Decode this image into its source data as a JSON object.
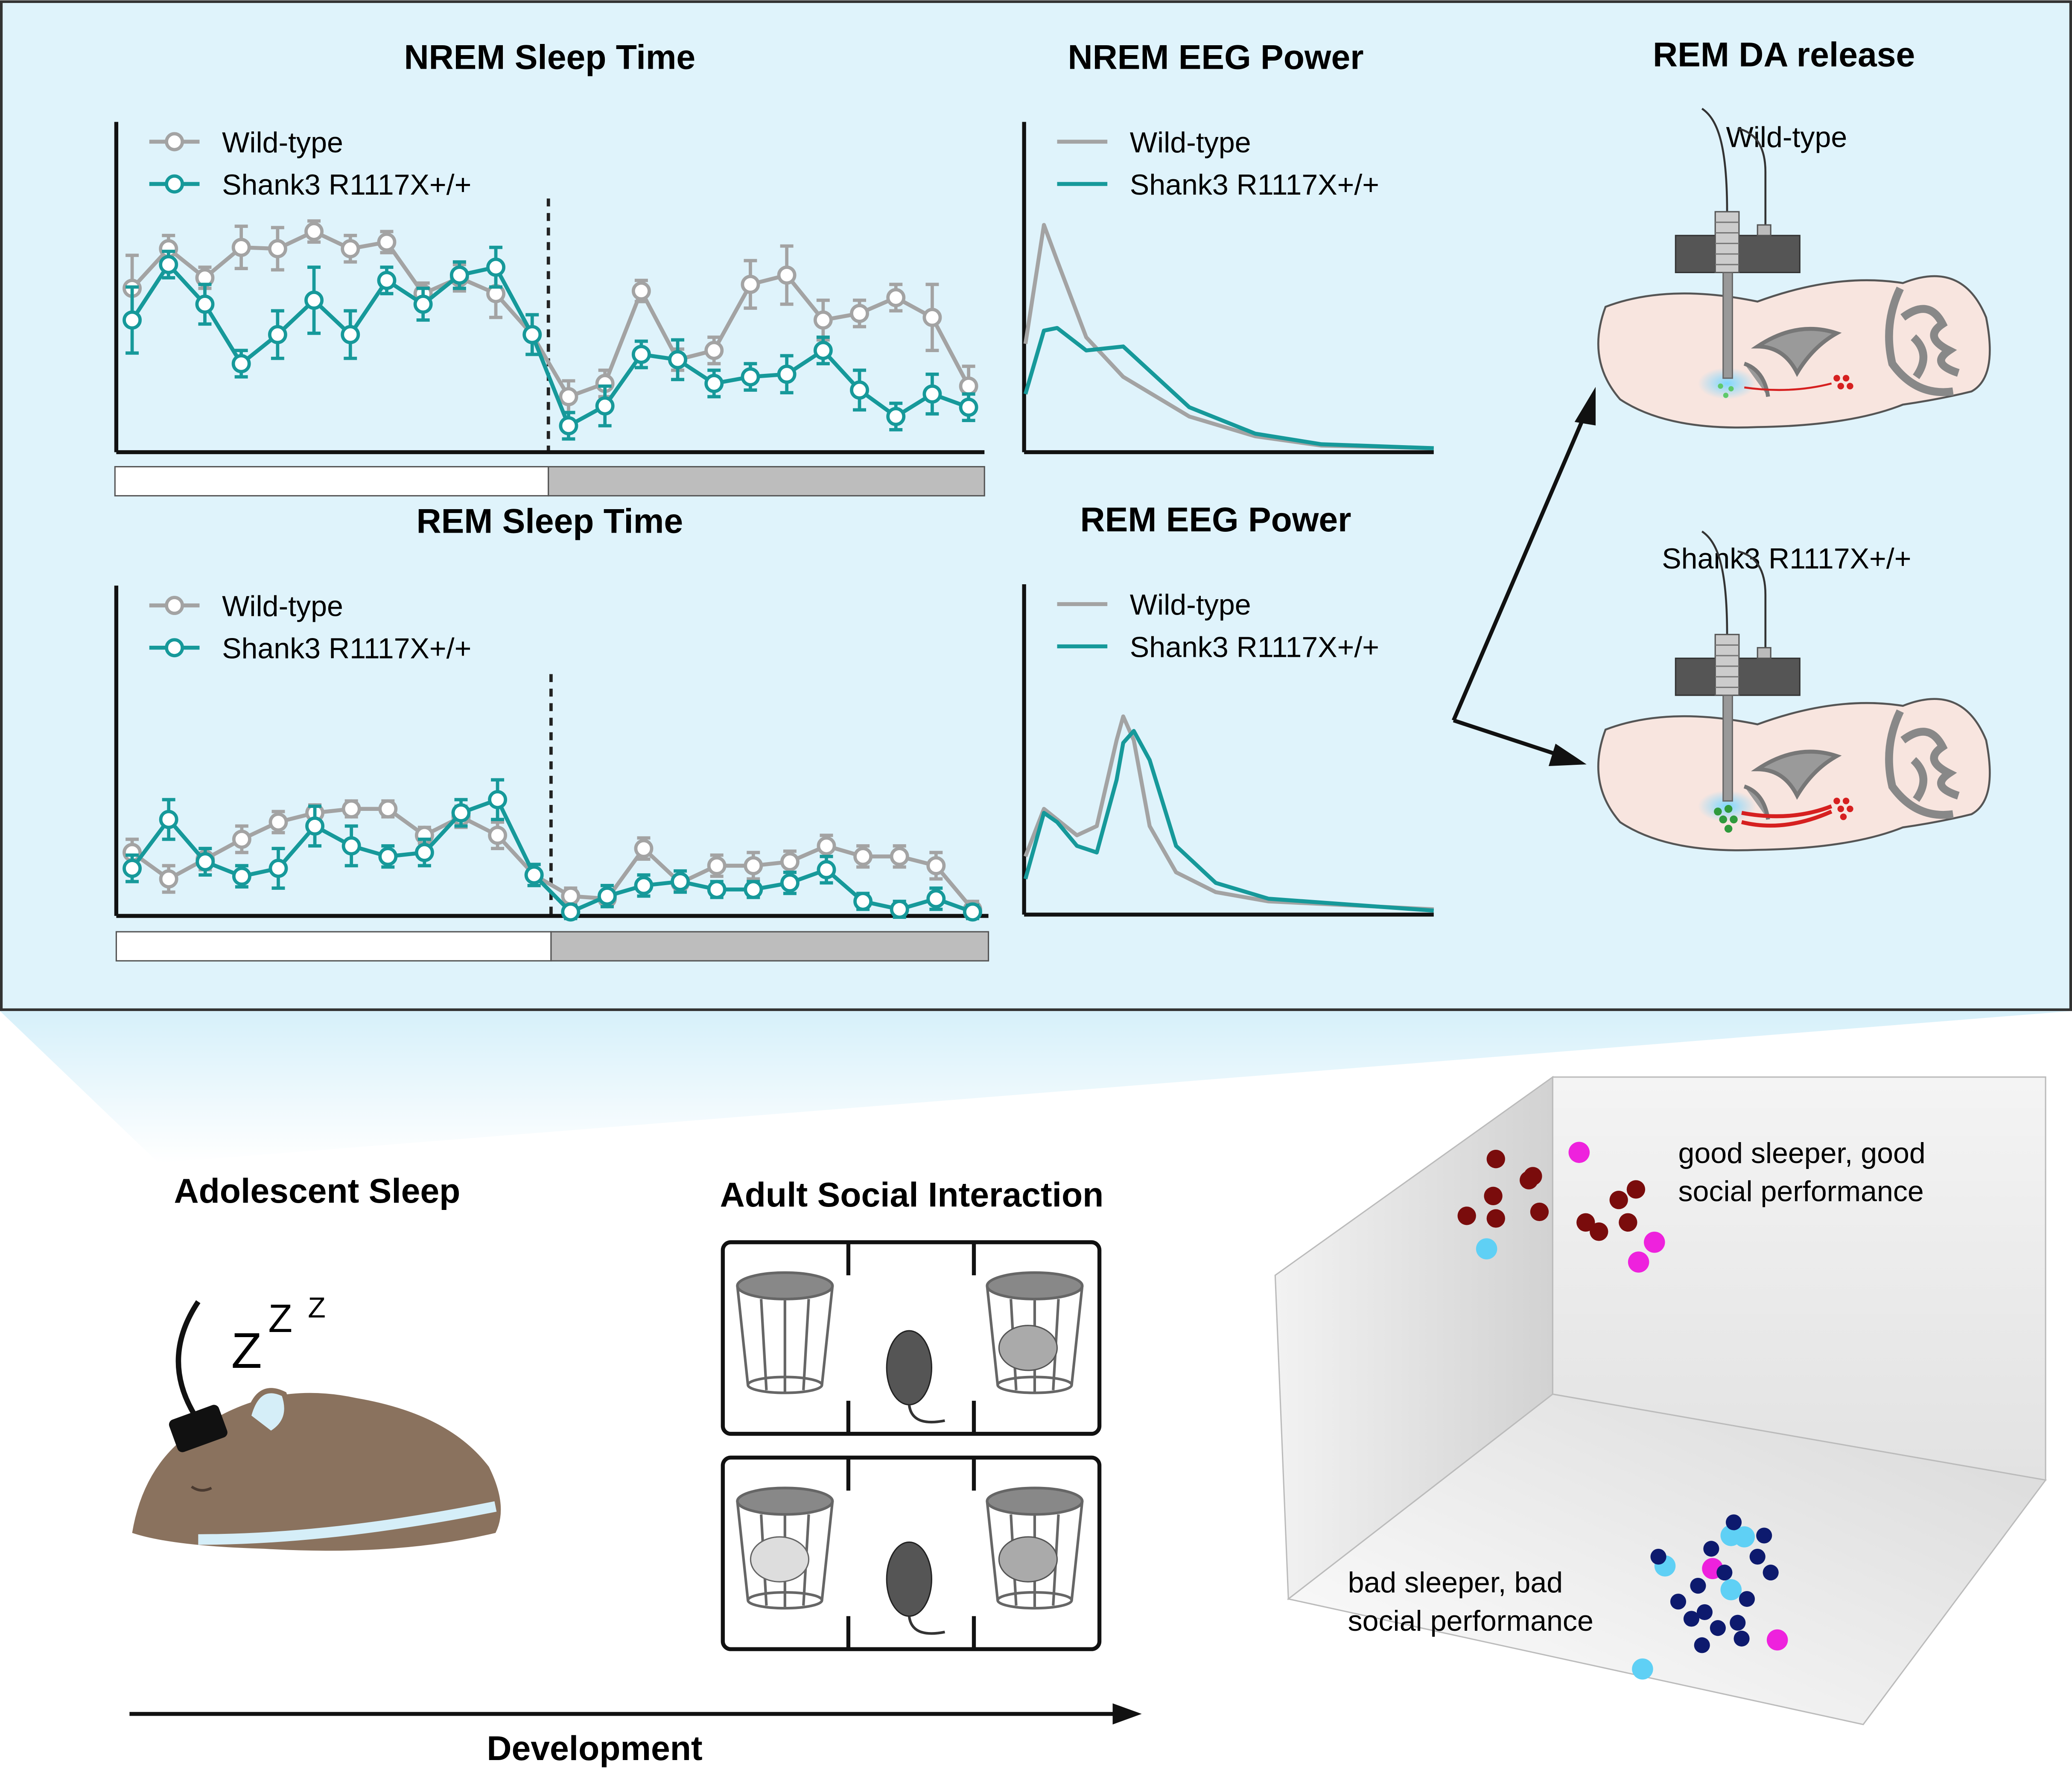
{
  "chart_data": [
    {
      "type": "line",
      "title": "NREM Sleep Time",
      "markers": true,
      "ylim": [
        0,
        250
      ],
      "series": [
        {
          "name": "Wild-type",
          "color": "#a3a3a3",
          "values": [
            124,
            154,
            132,
            155,
            154,
            167,
            154,
            159,
            120,
            132,
            120,
            89,
            42,
            52,
            122,
            70,
            77,
            127,
            134,
            100,
            105,
            117,
            102,
            50
          ],
          "errors": [
            25,
            10,
            8,
            16,
            16,
            8,
            10,
            8,
            8,
            10,
            18,
            15,
            12,
            10,
            8,
            8,
            10,
            18,
            22,
            15,
            10,
            10,
            25,
            15
          ]
        },
        {
          "name": "Shank3 R1117X+/+",
          "color": "#16999a",
          "values": [
            100,
            142,
            112,
            67,
            89,
            115,
            89,
            130,
            112,
            134,
            140,
            89,
            20,
            35,
            74,
            70,
            52,
            57,
            59,
            77,
            47,
            27,
            44,
            34
          ],
          "errors": [
            25,
            10,
            15,
            10,
            18,
            25,
            18,
            10,
            12,
            10,
            15,
            15,
            10,
            15,
            10,
            15,
            10,
            10,
            14,
            10,
            15,
            10,
            15,
            10
          ]
        }
      ]
    },
    {
      "type": "line",
      "title": "REM Sleep Time",
      "markers": true,
      "ylim": [
        0,
        250
      ],
      "series": [
        {
          "name": "Wild-type",
          "color": "#a3a3a3",
          "values": [
            48,
            28,
            43,
            58,
            71,
            78,
            81,
            81,
            61,
            75,
            61,
            31,
            15,
            13,
            51,
            25,
            38,
            38,
            41,
            53,
            45,
            45,
            38,
            5
          ],
          "errors": [
            10,
            10,
            8,
            10,
            8,
            6,
            6,
            6,
            6,
            8,
            10,
            8,
            6,
            5,
            8,
            5,
            8,
            10,
            8,
            8,
            8,
            8,
            10,
            6
          ]
        },
        {
          "name": "Shank3 R1117X+/+",
          "color": "#16999a",
          "values": [
            36,
            73,
            41,
            30,
            36,
            68,
            53,
            45,
            48,
            78,
            88,
            31,
            3,
            15,
            23,
            26,
            20,
            20,
            25,
            35,
            11,
            5,
            13,
            3
          ],
          "errors": [
            10,
            15,
            10,
            8,
            15,
            15,
            15,
            8,
            10,
            10,
            15,
            8,
            5,
            8,
            8,
            8,
            6,
            6,
            8,
            10,
            6,
            6,
            8,
            5
          ]
        }
      ]
    },
    {
      "type": "curve",
      "title": "NREM EEG Power",
      "xlim": [
        0,
        310
      ],
      "ylim": [
        0,
        250
      ],
      "x": [
        1,
        15,
        25,
        47,
        75,
        125,
        175,
        225,
        310
      ],
      "series": [
        {
          "name": "Wild-type",
          "color": "#a3a3a3",
          "values": [
            82,
            172,
            145,
            87,
            57,
            27,
            12,
            5,
            3
          ]
        },
        {
          "name": "Shank3 R1117X+/+",
          "color": "#16999a",
          "values": [
            44,
            92,
            94,
            77,
            80,
            34,
            14,
            6,
            3
          ]
        }
      ]
    },
    {
      "type": "curve",
      "title": "REM EEG Power",
      "xlim": [
        0,
        310
      ],
      "ylim": [
        0,
        250
      ],
      "x": [
        1,
        15,
        25,
        40,
        55,
        70,
        75,
        83,
        95,
        115,
        145,
        185,
        310
      ],
      "series": [
        {
          "name": "Wild-type",
          "color": "#a3a3a3",
          "values": [
            44,
            80,
            72,
            60,
            67,
            132,
            150,
            132,
            67,
            32,
            17,
            10,
            4
          ]
        },
        {
          "name": "Shank3 R1117X+/+",
          "color": "#16999a",
          "values": [
            27,
            77,
            70,
            52,
            47,
            102,
            130,
            139,
            117,
            52,
            24,
            12,
            3
          ]
        }
      ]
    }
  ],
  "da_release": {
    "title": "REM DA release",
    "wild_type": "Wild-type",
    "mutant": "Shank3 R1117X+/+"
  },
  "development": {
    "sleep_title": "Adolescent Sleep",
    "sleep_z": [
      "Z",
      "Z",
      "Z"
    ],
    "social_title": "Adult Social Interaction",
    "axis_label": "Development"
  },
  "outcome": {
    "good": [
      "good sleeper, good",
      "social performance"
    ],
    "bad": [
      "bad sleeper, bad",
      "social performance"
    ]
  }
}
